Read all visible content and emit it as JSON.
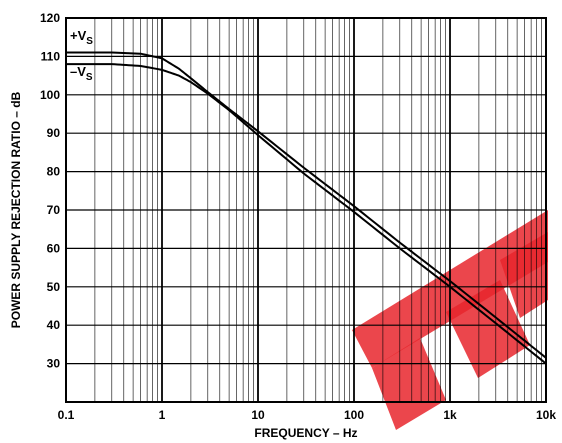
{
  "chart_data": {
    "type": "line",
    "title": "",
    "xlabel": "FREQUENCY – Hz",
    "ylabel": "POWER SUPPLY REJECTION RATIO – dB",
    "x_scale": "log",
    "xlim": [
      0.1,
      10000
    ],
    "ylim": [
      20,
      120
    ],
    "x_tick_labels": [
      {
        "value": 0.1,
        "label": "0.1"
      },
      {
        "value": 1,
        "label": "1"
      },
      {
        "value": 10,
        "label": "10"
      },
      {
        "value": 100,
        "label": "100"
      },
      {
        "value": 1000,
        "label": "1k"
      },
      {
        "value": 10000,
        "label": "10k"
      }
    ],
    "y_tick_labels": [
      {
        "value": 30,
        "label": "30"
      },
      {
        "value": 40,
        "label": "40"
      },
      {
        "value": 50,
        "label": "50"
      },
      {
        "value": 60,
        "label": "60"
      },
      {
        "value": 70,
        "label": "70"
      },
      {
        "value": 80,
        "label": "80"
      },
      {
        "value": 90,
        "label": "90"
      },
      {
        "value": 100,
        "label": "100"
      },
      {
        "value": 110,
        "label": "110"
      },
      {
        "value": 120,
        "label": "120"
      }
    ],
    "grid": true,
    "series": [
      {
        "name": "+VS",
        "name_main": "+V",
        "name_sub": "S",
        "x": [
          0.1,
          0.3,
          0.6,
          1,
          1.5,
          2,
          3,
          5,
          10,
          30,
          100,
          300,
          1000,
          3000,
          10000
        ],
        "y": [
          111,
          111,
          110.7,
          109.5,
          106.8,
          104.3,
          100.7,
          96.3,
          90.5,
          81,
          71,
          61.5,
          51.5,
          42,
          31.5
        ]
      },
      {
        "name": "–VS",
        "name_main": "–V",
        "name_sub": "S",
        "x": [
          0.1,
          0.3,
          0.6,
          1,
          1.5,
          2,
          3,
          5,
          10,
          30,
          100,
          300,
          1000,
          3000,
          10000
        ],
        "y": [
          108,
          108,
          107.5,
          106.5,
          105,
          103.3,
          100.3,
          96,
          89.5,
          79.5,
          69.5,
          60,
          50,
          40.5,
          30
        ]
      }
    ]
  },
  "watermark": {
    "color": "#e8262d"
  }
}
